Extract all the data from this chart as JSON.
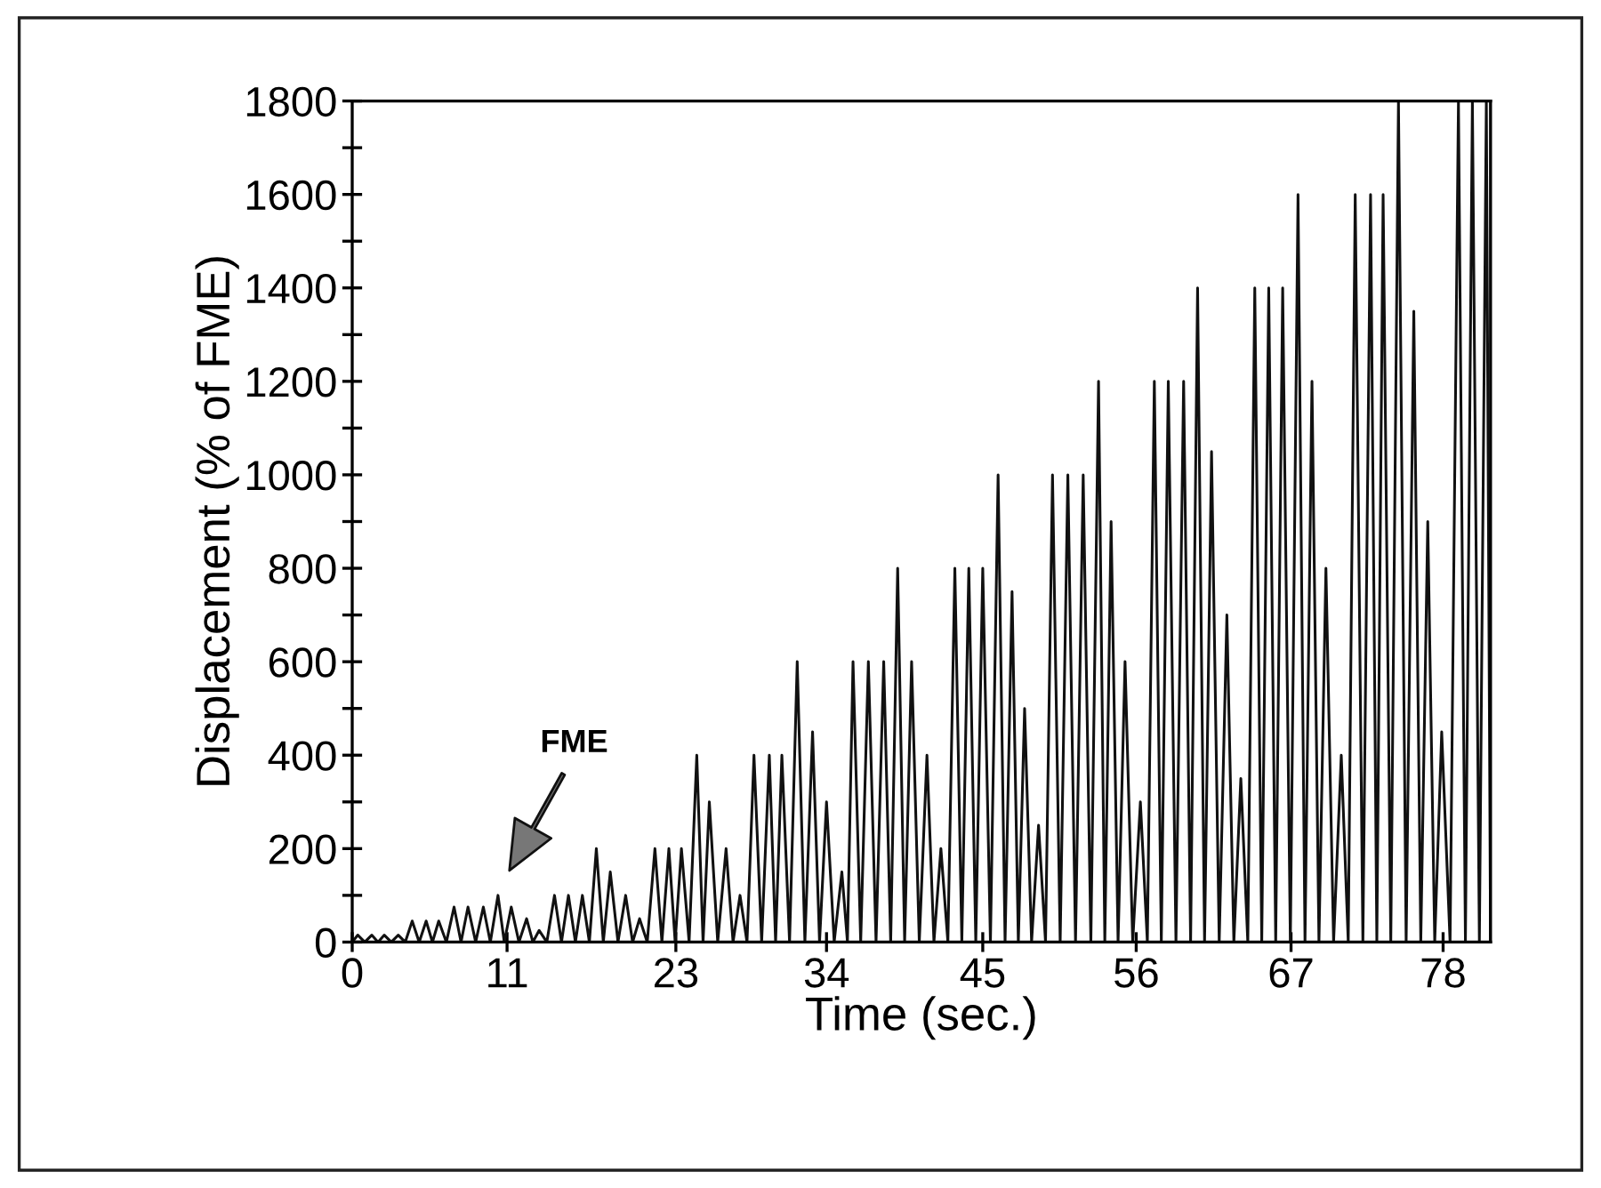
{
  "chart_data": {
    "type": "line",
    "xlabel": "Time (sec.)",
    "ylabel": "Displacement (% of FME)",
    "annotations": [
      "FME"
    ],
    "xlim": [
      0,
      81.6
    ],
    "ylim": [
      0,
      1800
    ],
    "xticks": [
      {
        "value": 0,
        "label": "0"
      },
      {
        "value": 11.1,
        "label": "11"
      },
      {
        "value": 23.2,
        "label": "23"
      },
      {
        "value": 34.0,
        "label": "34"
      },
      {
        "value": 45.2,
        "label": "45"
      },
      {
        "value": 56.2,
        "label": "56"
      },
      {
        "value": 67.3,
        "label": "67"
      },
      {
        "value": 78.2,
        "label": "78"
      }
    ],
    "yticks": [
      0,
      {
        "value": 100,
        "label": null
      },
      200,
      {
        "value": 300,
        "label": null
      },
      400,
      {
        "value": 500,
        "label": null
      },
      600,
      {
        "value": 700,
        "label": null
      },
      800,
      {
        "value": 900,
        "label": null
      },
      1000,
      {
        "value": 1100,
        "label": null
      },
      1200,
      {
        "value": 1300,
        "label": null
      },
      1400,
      {
        "value": 1500,
        "label": null
      },
      1600,
      {
        "value": 1700,
        "label": null
      },
      1800
    ],
    "grid": false,
    "marker": "none",
    "line_style": "solid",
    "series": [
      {
        "color": "#111111",
        "x": [
          0,
          0.4,
          0.9,
          1.4,
          1.85,
          2.3,
          2.8,
          3.3,
          3.8,
          4.3,
          4.8,
          5.3,
          5.75,
          6.2,
          6.75,
          7.3,
          7.8,
          8.3,
          8.85,
          9.4,
          9.9,
          10.45,
          10.9,
          11.4,
          11.95,
          12.5,
          12.95,
          13.4,
          13.95,
          14.5,
          15.0,
          15.5,
          16.0,
          16.5,
          17.0,
          17.5,
          18.0,
          18.5,
          19.05,
          19.6,
          20.1,
          20.6,
          21.15,
          21.7,
          22.2,
          22.7,
          23.15,
          23.6,
          24.15,
          24.7,
          25.15,
          25.6,
          26.2,
          26.8,
          27.3,
          27.8,
          28.3,
          28.8,
          29.35,
          29.9,
          30.35,
          30.8,
          31.35,
          31.9,
          32.45,
          33.0,
          33.5,
          34.0,
          34.55,
          35.1,
          35.5,
          35.9,
          36.45,
          37.0,
          37.55,
          38.1,
          38.6,
          39.1,
          39.6,
          40.1,
          40.65,
          41.2,
          41.7,
          42.2,
          42.7,
          43.2,
          43.7,
          44.2,
          44.7,
          45.2,
          45.75,
          46.3,
          46.8,
          47.3,
          47.75,
          48.2,
          48.7,
          49.2,
          49.7,
          50.2,
          50.75,
          51.3,
          51.85,
          52.4,
          52.95,
          53.5,
          53.95,
          54.4,
          54.9,
          55.4,
          55.95,
          56.5,
          57.0,
          57.5,
          58.0,
          58.5,
          59.05,
          59.6,
          60.1,
          60.6,
          61.1,
          61.6,
          62.15,
          62.7,
          63.2,
          63.7,
          64.2,
          64.7,
          65.2,
          65.7,
          66.2,
          66.7,
          67.25,
          67.8,
          68.3,
          68.8,
          69.3,
          69.8,
          70.35,
          70.9,
          71.4,
          71.9,
          72.45,
          73.0,
          73.45,
          73.9,
          74.45,
          75.0,
          75.55,
          76.1,
          76.6,
          77.1,
          77.6,
          78.1,
          78.7,
          79.3,
          79.8,
          80.3,
          80.8,
          81.3,
          81.6
        ],
        "values": [
          0,
          15,
          0,
          15,
          0,
          15,
          0,
          15,
          0,
          45,
          0,
          45,
          0,
          45,
          0,
          75,
          0,
          75,
          0,
          75,
          0,
          100,
          0,
          75,
          0,
          50,
          0,
          25,
          0,
          100,
          0,
          100,
          0,
          100,
          0,
          200,
          0,
          150,
          0,
          100,
          0,
          50,
          0,
          200,
          0,
          200,
          0,
          200,
          0,
          400,
          0,
          300,
          0,
          200,
          0,
          100,
          0,
          400,
          0,
          400,
          0,
          400,
          0,
          600,
          0,
          450,
          0,
          300,
          0,
          150,
          0,
          600,
          0,
          600,
          0,
          600,
          0,
          800,
          0,
          600,
          0,
          400,
          0,
          200,
          0,
          800,
          0,
          800,
          0,
          800,
          0,
          1000,
          0,
          750,
          0,
          500,
          0,
          250,
          0,
          1000,
          0,
          1000,
          0,
          1000,
          0,
          1200,
          0,
          900,
          0,
          600,
          0,
          300,
          0,
          1200,
          0,
          1200,
          0,
          1200,
          0,
          1400,
          0,
          1050,
          0,
          700,
          0,
          350,
          0,
          1400,
          0,
          1400,
          0,
          1400,
          0,
          1600,
          0,
          1200,
          0,
          800,
          0,
          400,
          0,
          1600,
          0,
          1600,
          0,
          1600,
          0,
          1800,
          0,
          1350,
          0,
          900,
          0,
          450,
          0,
          1800,
          0,
          1800,
          0,
          1800,
          0
        ]
      }
    ]
  }
}
